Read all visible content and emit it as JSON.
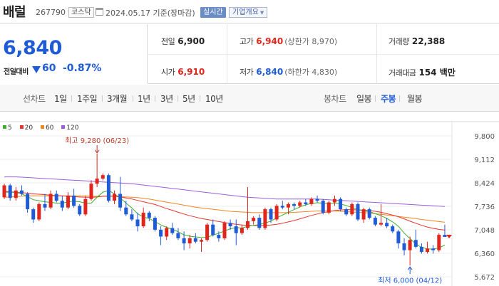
{
  "header": {
    "name": "배럴",
    "code": "267790",
    "market": "코스닥",
    "date": "2024.05.17 기준(장마감)",
    "realtime": "실시간",
    "company_info": "기업개요"
  },
  "price": {
    "current": "6,840",
    "vs_label": "전일대비",
    "change": "60",
    "change_pct": "-0.87%",
    "direction": "down"
  },
  "stats": {
    "prev_label": "전일",
    "prev": "6,900",
    "high_label": "고가",
    "high": "6,940",
    "upper_limit": "(상한가 8,970)",
    "volume_label": "거래량",
    "volume": "22,388",
    "open_label": "시가",
    "open": "6,910",
    "low_label": "저가",
    "low": "6,840",
    "lower_limit": "(하한가 4,830)",
    "amount_label": "거래대금",
    "amount": "154 백만"
  },
  "tabs": {
    "line_label": "선차트",
    "periods": [
      "1일",
      "1주일",
      "3개월",
      "1년",
      "3년",
      "5년",
      "10년"
    ],
    "candle_label": "봉차트",
    "candles": [
      "일봉",
      "주봉",
      "월봉"
    ],
    "selected_candle": "주봉"
  },
  "colors": {
    "up": "#e0261c",
    "down": "#1f5bd6",
    "ma5": "#3cae2b",
    "ma20": "#e8322b",
    "ma60": "#f0861e",
    "ma120": "#9b5de0"
  },
  "chart_data": {
    "type": "candlestick",
    "legend": [
      {
        "name": "5",
        "color": "#3cae2b"
      },
      {
        "name": "20",
        "color": "#e8322b"
      },
      {
        "name": "60",
        "color": "#f0861e"
      },
      {
        "name": "120",
        "color": "#9b5de0"
      }
    ],
    "y_ticks": [
      "9,800",
      "9,112",
      "8,424",
      "7,736",
      "7,048",
      "6,360",
      "5,672"
    ],
    "ylim": [
      5672,
      9800
    ],
    "annotations": {
      "max": "최고 9,280 (06/23)",
      "min": "최저 6,000 (04/12)"
    },
    "candles": [
      [
        8000,
        8400,
        7950,
        8350
      ],
      [
        8350,
        8400,
        7900,
        7980
      ],
      [
        7980,
        8300,
        7900,
        8200
      ],
      [
        8200,
        8350,
        8050,
        8100
      ],
      [
        8100,
        8150,
        7550,
        7650
      ],
      [
        7650,
        7700,
        7250,
        7350
      ],
      [
        7350,
        7850,
        7300,
        7800
      ],
      [
        7800,
        8100,
        7600,
        7700
      ],
      [
        7700,
        8200,
        7650,
        8100
      ],
      [
        8100,
        8200,
        7850,
        7900
      ],
      [
        7900,
        8050,
        7600,
        7700
      ],
      [
        7700,
        8150,
        7650,
        8050
      ],
      [
        8050,
        8250,
        7700,
        7750
      ],
      [
        7750,
        7800,
        7450,
        7500
      ],
      [
        7500,
        8050,
        7450,
        7950
      ],
      [
        7950,
        8500,
        7900,
        8400
      ],
      [
        8400,
        9280,
        8300,
        8550
      ],
      [
        8550,
        8700,
        8500,
        8650
      ],
      [
        8650,
        8700,
        7850,
        7900
      ],
      [
        7900,
        8200,
        7800,
        8100
      ],
      [
        8100,
        8600,
        7600,
        7700
      ],
      [
        7700,
        7900,
        7450,
        7500
      ],
      [
        7500,
        7650,
        7300,
        7350
      ],
      [
        7350,
        7550,
        7000,
        7150
      ],
      [
        7150,
        7700,
        7100,
        7550
      ],
      [
        7550,
        7600,
        7300,
        7400
      ],
      [
        7400,
        7450,
        7000,
        7050
      ],
      [
        7050,
        7150,
        6600,
        6850
      ],
      [
        6850,
        7150,
        6750,
        7100
      ],
      [
        7100,
        7250,
        6900,
        6950
      ],
      [
        6950,
        7100,
        6750,
        6800
      ],
      [
        6800,
        7000,
        6450,
        6650
      ],
      [
        6650,
        6900,
        6500,
        6800
      ],
      [
        6800,
        6950,
        6650,
        6700
      ],
      [
        6700,
        6800,
        6400,
        6750
      ],
      [
        6750,
        7250,
        6700,
        7200
      ],
      [
        7200,
        7350,
        6850,
        6900
      ],
      [
        6900,
        7000,
        6700,
        6800
      ],
      [
        6800,
        7300,
        6750,
        7250
      ],
      [
        7250,
        7350,
        7050,
        7150
      ],
      [
        7150,
        7350,
        6600,
        6950
      ],
      [
        6950,
        7200,
        6900,
        7100
      ],
      [
        7100,
        8300,
        7050,
        7300
      ],
      [
        7300,
        7450,
        7200,
        7400
      ],
      [
        7400,
        7500,
        7050,
        7100
      ],
      [
        7100,
        7700,
        7050,
        7650
      ],
      [
        7650,
        7700,
        7250,
        7350
      ],
      [
        7350,
        7800,
        7300,
        7750
      ],
      [
        7750,
        7900,
        7650,
        7700
      ],
      [
        7700,
        7850,
        7500,
        7800
      ],
      [
        7800,
        7850,
        7650,
        7750
      ],
      [
        7750,
        7900,
        7700,
        7850
      ],
      [
        7850,
        7950,
        7750,
        7800
      ],
      [
        7800,
        8000,
        7750,
        7950
      ],
      [
        7950,
        8050,
        7850,
        7900
      ],
      [
        7900,
        7950,
        7500,
        7550
      ],
      [
        7550,
        7900,
        7500,
        7850
      ],
      [
        7850,
        8050,
        7750,
        7950
      ],
      [
        7950,
        8000,
        7600,
        7650
      ],
      [
        7650,
        7700,
        7450,
        7500
      ],
      [
        7500,
        7850,
        7450,
        7800
      ],
      [
        7800,
        7850,
        7300,
        7350
      ],
      [
        7350,
        7700,
        7250,
        7650
      ],
      [
        7650,
        7700,
        7350,
        7400
      ],
      [
        7400,
        7450,
        7150,
        7200
      ],
      [
        7200,
        7800,
        7150,
        7250
      ],
      [
        7250,
        7400,
        7100,
        7150
      ],
      [
        7150,
        7200,
        6950,
        7000
      ],
      [
        7000,
        7050,
        6500,
        6650
      ],
      [
        6650,
        6800,
        6300,
        6450
      ],
      [
        6450,
        6850,
        6000,
        6750
      ],
      [
        6750,
        7050,
        6500,
        6550
      ],
      [
        6550,
        6650,
        6350,
        6400
      ],
      [
        6400,
        6700,
        6350,
        6500
      ],
      [
        6500,
        6600,
        6350,
        6450
      ],
      [
        6450,
        6950,
        6400,
        6900
      ],
      [
        6900,
        7200,
        6840,
        6840
      ]
    ],
    "ma5": [
      8150,
      8150,
      8140,
      8100,
      8020,
      7930,
      7900,
      7870,
      7850,
      7830,
      7830,
      7870,
      7890,
      7870,
      7830,
      7830,
      8000,
      8150,
      8200,
      8100,
      7980,
      7830,
      7690,
      7520,
      7420,
      7380,
      7290,
      7190,
      7120,
      7060,
      6990,
      6900,
      6860,
      6840,
      6820,
      6830,
      6890,
      6950,
      7010,
      7080,
      7110,
      7100,
      7150,
      7180,
      7200,
      7250,
      7300,
      7400,
      7480,
      7560,
      7640,
      7720,
      7780,
      7820,
      7840,
      7830,
      7820,
      7830,
      7800,
      7760,
      7700,
      7650,
      7600,
      7580,
      7520,
      7460,
      7380,
      7280,
      7150,
      6950,
      6790,
      6630,
      6530,
      6490,
      6480,
      6520,
      6600
    ],
    "ma20": [
      8180,
      8160,
      8150,
      8140,
      8120,
      8100,
      8090,
      8080,
      8060,
      8050,
      8040,
      8030,
      8020,
      8010,
      8000,
      8000,
      8010,
      8030,
      8040,
      8030,
      8010,
      7980,
      7950,
      7910,
      7870,
      7830,
      7790,
      7730,
      7670,
      7620,
      7560,
      7510,
      7460,
      7420,
      7380,
      7350,
      7320,
      7290,
      7260,
      7230,
      7210,
      7190,
      7180,
      7170,
      7170,
      7180,
      7190,
      7210,
      7240,
      7280,
      7320,
      7370,
      7420,
      7470,
      7510,
      7550,
      7580,
      7610,
      7630,
      7640,
      7640,
      7630,
      7620,
      7610,
      7590,
      7560,
      7520,
      7480,
      7430,
      7370,
      7300,
      7240,
      7180,
      7130,
      7090,
      7060,
      7040
    ],
    "ma60": [
      8000,
      8010,
      8020,
      8030,
      8040,
      8040,
      8040,
      8040,
      8040,
      8040,
      8040,
      8040,
      8040,
      8040,
      8040,
      8030,
      8030,
      8030,
      8030,
      8030,
      8020,
      8010,
      8000,
      7990,
      7970,
      7950,
      7920,
      7890,
      7860,
      7830,
      7800,
      7770,
      7740,
      7710,
      7690,
      7670,
      7650,
      7630,
      7610,
      7590,
      7580,
      7570,
      7560,
      7550,
      7550,
      7550,
      7550,
      7550,
      7550,
      7550,
      7560,
      7570,
      7580,
      7590,
      7600,
      7600,
      7600,
      7600,
      7590,
      7580,
      7570,
      7560,
      7550,
      7540,
      7520,
      7500,
      7480,
      7460,
      7440,
      7420,
      7400,
      7380,
      7350,
      7330,
      7310,
      7290,
      7270
    ],
    "ma120": [
      8600,
      8600,
      8600,
      8590,
      8580,
      8570,
      8560,
      8550,
      8540,
      8530,
      8520,
      8510,
      8500,
      8490,
      8480,
      8470,
      8460,
      8450,
      8440,
      8430,
      8420,
      8410,
      8400,
      8380,
      8360,
      8340,
      8320,
      8300,
      8280,
      8260,
      8240,
      8220,
      8200,
      8180,
      8160,
      8140,
      8120,
      8100,
      8080,
      8060,
      8040,
      8020,
      8000,
      7990,
      7980,
      7970,
      7960,
      7950,
      7950,
      7950,
      7950,
      7950,
      7950,
      7950,
      7950,
      7940,
      7930,
      7920,
      7910,
      7900,
      7890,
      7880,
      7870,
      7860,
      7850,
      7840,
      7830,
      7820,
      7810,
      7800,
      7790,
      7780,
      7770,
      7760,
      7750,
      7740,
      7730
    ]
  }
}
